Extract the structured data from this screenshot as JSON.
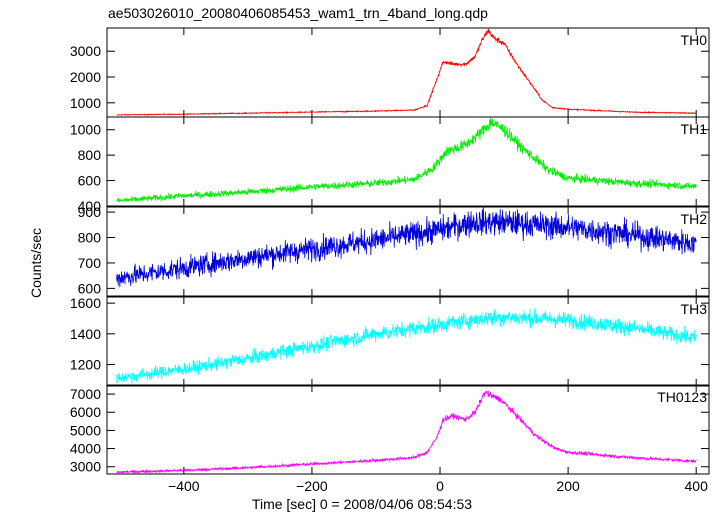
{
  "title": "ae503026010_20080406085453_wam1_trn_4band_long.qdp",
  "chart_data": {
    "type": "line",
    "xlabel": "Time [sec] 0 = 2008/04/06 08:54:53",
    "ylabel": "Counts/sec",
    "xlim": [
      -520,
      420
    ],
    "x_ticks": [
      -400,
      -200,
      0,
      200,
      400
    ],
    "grid": false,
    "panels": [
      {
        "name": "TH0",
        "color": "#ff0000",
        "ylim": [
          450,
          3900
        ],
        "y_ticks": [
          1000,
          2000,
          3000
        ],
        "noise": 0.03,
        "points": [
          [
            -505,
            530
          ],
          [
            -400,
            560
          ],
          [
            -300,
            600
          ],
          [
            -200,
            640
          ],
          [
            -100,
            680
          ],
          [
            -40,
            720
          ],
          [
            -20,
            900
          ],
          [
            -5,
            1900
          ],
          [
            5,
            2600
          ],
          [
            20,
            2500
          ],
          [
            40,
            2500
          ],
          [
            55,
            2800
          ],
          [
            65,
            3400
          ],
          [
            75,
            3800
          ],
          [
            85,
            3500
          ],
          [
            100,
            3300
          ],
          [
            120,
            2500
          ],
          [
            140,
            1800
          ],
          [
            160,
            1100
          ],
          [
            175,
            820
          ],
          [
            200,
            750
          ],
          [
            300,
            640
          ],
          [
            400,
            600
          ]
        ]
      },
      {
        "name": "TH1",
        "color": "#00ee00",
        "ylim": [
          400,
          1100
        ],
        "y_ticks": [
          400,
          600,
          800,
          1000
        ],
        "noise": 0.05,
        "points": [
          [
            -505,
            440
          ],
          [
            -400,
            480
          ],
          [
            -300,
            510
          ],
          [
            -200,
            550
          ],
          [
            -100,
            580
          ],
          [
            -40,
            610
          ],
          [
            -10,
            700
          ],
          [
            10,
            830
          ],
          [
            40,
            880
          ],
          [
            60,
            960
          ],
          [
            80,
            1060
          ],
          [
            100,
            1000
          ],
          [
            130,
            850
          ],
          [
            170,
            680
          ],
          [
            200,
            620
          ],
          [
            300,
            580
          ],
          [
            400,
            555
          ]
        ]
      },
      {
        "name": "TH2",
        "color": "#0000dd",
        "ylim": [
          570,
          920
        ],
        "y_ticks": [
          600,
          700,
          800,
          900
        ],
        "noise": 0.06,
        "points": [
          [
            -505,
            640
          ],
          [
            -400,
            680
          ],
          [
            -300,
            720
          ],
          [
            -200,
            755
          ],
          [
            -100,
            790
          ],
          [
            0,
            830
          ],
          [
            50,
            860
          ],
          [
            100,
            860
          ],
          [
            200,
            840
          ],
          [
            300,
            810
          ],
          [
            400,
            775
          ]
        ]
      },
      {
        "name": "TH3",
        "color": "#00ffff",
        "ylim": [
          1060,
          1640
        ],
        "y_ticks": [
          1200,
          1400,
          1600
        ],
        "noise": 0.035,
        "points": [
          [
            -505,
            1110
          ],
          [
            -400,
            1170
          ],
          [
            -300,
            1240
          ],
          [
            -200,
            1320
          ],
          [
            -100,
            1400
          ],
          [
            0,
            1460
          ],
          [
            50,
            1490
          ],
          [
            100,
            1510
          ],
          [
            200,
            1490
          ],
          [
            300,
            1440
          ],
          [
            400,
            1370
          ]
        ]
      },
      {
        "name": "TH0123",
        "color": "#ff00ff",
        "ylim": [
          2600,
          7500
        ],
        "y_ticks": [
          3000,
          4000,
          5000,
          6000,
          7000
        ],
        "noise": 0.025,
        "points": [
          [
            -505,
            2700
          ],
          [
            -400,
            2800
          ],
          [
            -300,
            2950
          ],
          [
            -200,
            3150
          ],
          [
            -100,
            3350
          ],
          [
            -40,
            3500
          ],
          [
            -20,
            3800
          ],
          [
            -5,
            4600
          ],
          [
            5,
            5600
          ],
          [
            20,
            5800
          ],
          [
            40,
            5600
          ],
          [
            55,
            6000
          ],
          [
            70,
            7100
          ],
          [
            80,
            6900
          ],
          [
            95,
            6700
          ],
          [
            120,
            5800
          ],
          [
            150,
            4700
          ],
          [
            180,
            4000
          ],
          [
            200,
            3800
          ],
          [
            300,
            3500
          ],
          [
            400,
            3300
          ]
        ]
      }
    ]
  }
}
